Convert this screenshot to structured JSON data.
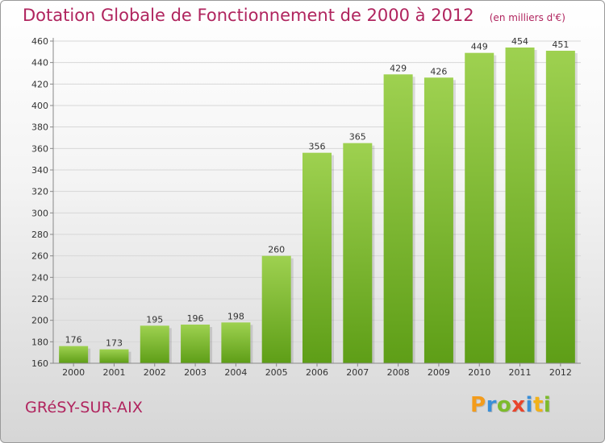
{
  "header": {
    "title": "Dotation Globale de Fonctionnement de 2000 à 2012",
    "subtitle": "(en milliers d'€)"
  },
  "footer": {
    "city": "GRéSY-SUR-AIX",
    "brand": "Proxiti"
  },
  "colors": {
    "title": "#b0245e",
    "bar_light": "#9ed150",
    "bar_dark": "#5e9e17",
    "logo_letters": [
      "#f39c1c",
      "#3a8fd8",
      "#7dbb2c",
      "#e8452c",
      "#3a8fd8",
      "#f2b118",
      "#7dbb2c"
    ]
  },
  "chart_data": {
    "type": "bar",
    "title": "Dotation Globale de Fonctionnement de 2000 à 2012",
    "subtitle": "(en milliers d'€)",
    "categories": [
      "2000",
      "2001",
      "2002",
      "2003",
      "2004",
      "2005",
      "2006",
      "2007",
      "2008",
      "2009",
      "2010",
      "2011",
      "2012"
    ],
    "values": [
      176,
      173,
      195,
      196,
      198,
      260,
      356,
      365,
      429,
      426,
      449,
      454,
      451
    ],
    "ylim": [
      160,
      460
    ],
    "yticks": [
      160,
      180,
      200,
      220,
      240,
      260,
      280,
      300,
      320,
      340,
      360,
      380,
      400,
      420,
      440,
      460
    ],
    "grid": true,
    "data_labels": true
  }
}
